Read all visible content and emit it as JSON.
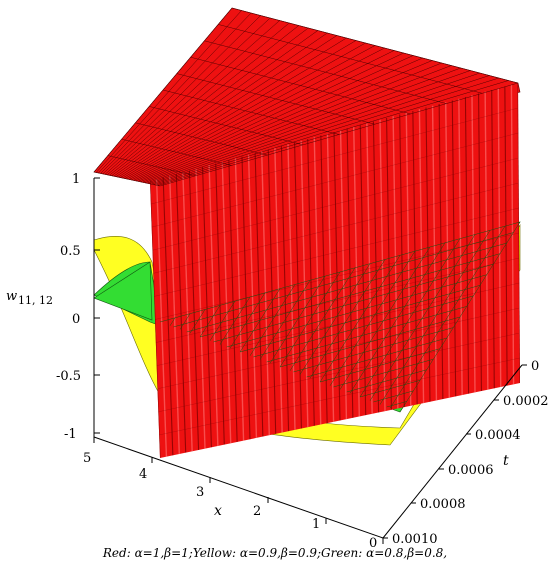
{
  "chart_data": {
    "type": "surface3d",
    "caption": "Red: α=1,β=1;Yellow: α=0.9,β=0.9;Green: α=0.8,β=0.8,",
    "z_label": "w",
    "z_label_subscript": "11, 12",
    "x_label": "x",
    "t_label": "t",
    "x_ticks": [
      "5",
      "4",
      "3",
      "2",
      "1",
      "0"
    ],
    "t_ticks": [
      "0",
      "0.0002",
      "0.0004",
      "0.0006",
      "0.0008",
      "0.0010"
    ],
    "z_ticks": [
      "1",
      "0.5",
      "0",
      "-0.5",
      "-1"
    ],
    "x_range": [
      0,
      5
    ],
    "t_range": [
      0,
      0.001
    ],
    "z_range": [
      -1,
      1
    ],
    "series": [
      {
        "name": "Red",
        "alpha": 1,
        "beta": 1,
        "color": "#ee1111"
      },
      {
        "name": "Yellow",
        "alpha": 0.9,
        "beta": 0.9,
        "color": "#ffff22"
      },
      {
        "name": "Green",
        "alpha": 0.8,
        "beta": 0.8,
        "color": "#33dd33"
      }
    ]
  }
}
